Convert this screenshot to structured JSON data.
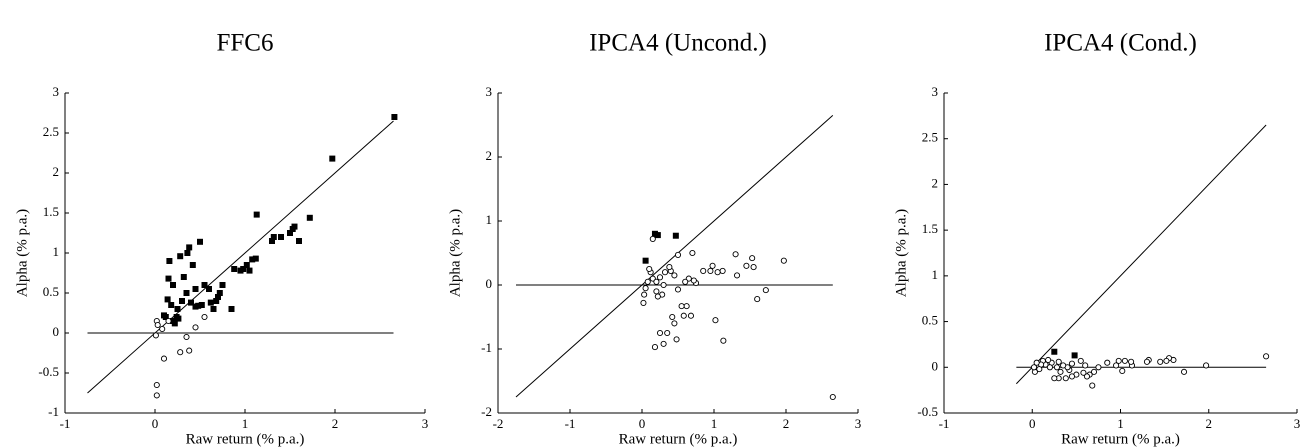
{
  "chart_data": [
    {
      "type": "scatter",
      "title": "FFC6",
      "xlabel": "Raw return (% p.a.)",
      "ylabel": "Alpha (% p.a.)",
      "xlim": [
        -1,
        3
      ],
      "ylim": [
        -1,
        3
      ],
      "xticks": [
        -1,
        0,
        1,
        2,
        3
      ],
      "yticks": [
        -1,
        -0.5,
        0,
        0.5,
        1,
        1.5,
        2,
        2.5,
        3
      ],
      "series": [
        {
          "marker": "square",
          "color": "#000000",
          "x": [
            2.66,
            1.97,
            1.72,
            1.6,
            1.55,
            1.53,
            1.5,
            1.4,
            1.32,
            1.3,
            1.13,
            1.12,
            1.08,
            1.05,
            1.02,
            0.98,
            0.95,
            0.88,
            0.85,
            0.75,
            0.72,
            0.7,
            0.68,
            0.65,
            0.62,
            0.6,
            0.55,
            0.5,
            0.48,
            0.45,
            0.42,
            0.4,
            0.38,
            0.36,
            0.35,
            0.32,
            0.3,
            0.28,
            0.25,
            0.24,
            0.2,
            0.18,
            0.16,
            0.15,
            0.14,
            0.12,
            0.1,
            0.2,
            0.22,
            0.26,
            0.45,
            0.52
          ],
          "y": [
            2.7,
            2.18,
            1.44,
            1.15,
            1.33,
            1.3,
            1.25,
            1.2,
            1.2,
            1.15,
            1.48,
            0.93,
            0.92,
            0.78,
            0.85,
            0.8,
            0.78,
            0.8,
            0.3,
            0.6,
            0.5,
            0.45,
            0.4,
            0.3,
            0.38,
            0.55,
            0.6,
            1.14,
            0.34,
            0.55,
            0.85,
            0.38,
            1.07,
            1.0,
            0.5,
            0.7,
            0.4,
            0.96,
            0.3,
            0.2,
            0.6,
            0.35,
            0.9,
            0.68,
            0.42,
            0.2,
            0.22,
            0.15,
            0.12,
            0.18,
            0.33,
            0.35
          ]
        },
        {
          "marker": "circle",
          "color": "#000000",
          "x": [
            0.02,
            0.03,
            0.01,
            0.02,
            0.02,
            0.1,
            0.28,
            0.38,
            0.35,
            0.45,
            0.55,
            0.15,
            0.08
          ],
          "y": [
            0.15,
            0.1,
            -0.03,
            -0.65,
            -0.78,
            -0.32,
            -0.24,
            -0.22,
            -0.05,
            0.07,
            0.2,
            0.15,
            0.05
          ]
        }
      ],
      "lines": [
        {
          "x": [
            -0.75,
            2.65
          ],
          "y": [
            -0.75,
            2.65
          ]
        },
        {
          "x": [
            -0.75,
            2.65
          ],
          "y": [
            0,
            0
          ]
        }
      ]
    },
    {
      "type": "scatter",
      "title": "IPCA4 (Uncond.)",
      "xlabel": "Raw return (% p.a.)",
      "ylabel": "Alpha (% p.a.)",
      "xlim": [
        -2,
        3
      ],
      "ylim": [
        -2,
        3
      ],
      "xticks": [
        -2,
        -1,
        0,
        1,
        2,
        3
      ],
      "yticks": [
        -2,
        -1,
        0,
        1,
        2,
        3
      ],
      "series": [
        {
          "marker": "square",
          "color": "#000000",
          "x": [
            0.05,
            0.18,
            0.22,
            0.47
          ],
          "y": [
            0.38,
            0.8,
            0.78,
            0.77
          ]
        },
        {
          "marker": "circle",
          "color": "#000000",
          "x": [
            2.65,
            1.97,
            1.72,
            1.6,
            1.55,
            1.53,
            1.45,
            1.32,
            1.3,
            1.13,
            1.12,
            1.05,
            1.02,
            0.98,
            0.95,
            0.85,
            0.75,
            0.72,
            0.7,
            0.68,
            0.65,
            0.62,
            0.6,
            0.58,
            0.55,
            0.5,
            0.48,
            0.45,
            0.42,
            0.4,
            0.38,
            0.35,
            0.32,
            0.3,
            0.28,
            0.25,
            0.22,
            0.2,
            0.18,
            0.15,
            0.12,
            0.1,
            0.08,
            0.05,
            0.03,
            0.02,
            0.15,
            0.2,
            0.5,
            0.3,
            0.25,
            0.45
          ],
          "y": [
            -1.75,
            0.38,
            -0.08,
            -0.22,
            0.28,
            0.42,
            0.3,
            0.15,
            0.48,
            -0.87,
            0.22,
            0.2,
            -0.55,
            0.3,
            0.22,
            0.22,
            0.03,
            0.07,
            0.5,
            -0.48,
            0.1,
            -0.33,
            0.05,
            -0.48,
            -0.33,
            -0.07,
            -0.85,
            -0.6,
            -0.5,
            0.22,
            0.28,
            -0.75,
            0.2,
            -0.92,
            -0.15,
            -0.75,
            -0.18,
            -0.1,
            -0.97,
            0.1,
            0.2,
            0.25,
            0.05,
            -0.05,
            -0.15,
            -0.28,
            0.72,
            0.05,
            0.47,
            0.0,
            0.12,
            0.15
          ]
        }
      ],
      "lines": [
        {
          "x": [
            -1.75,
            2.65
          ],
          "y": [
            -1.75,
            2.65
          ]
        },
        {
          "x": [
            -1.75,
            2.65
          ],
          "y": [
            0,
            0
          ]
        }
      ]
    },
    {
      "type": "scatter",
      "title": "IPCA4 (Cond.)",
      "xlabel": "Raw return (% p.a.)",
      "ylabel": "Alpha (% p.a.)",
      "xlim": [
        -1,
        3
      ],
      "ylim": [
        -0.5,
        3
      ],
      "xticks": [
        -1,
        0,
        1,
        2,
        3
      ],
      "yticks": [
        -0.5,
        0,
        0.5,
        1,
        1.5,
        2,
        2.5,
        3
      ],
      "series": [
        {
          "marker": "square",
          "color": "#000000",
          "x": [
            0.25,
            0.48
          ],
          "y": [
            0.17,
            0.13
          ]
        },
        {
          "marker": "circle",
          "color": "#000000",
          "x": [
            2.65,
            1.97,
            1.72,
            1.6,
            1.55,
            1.52,
            1.45,
            1.32,
            1.3,
            1.13,
            1.12,
            1.05,
            1.02,
            0.98,
            0.95,
            0.85,
            0.75,
            0.7,
            0.68,
            0.65,
            0.62,
            0.6,
            0.58,
            0.55,
            0.5,
            0.45,
            0.42,
            0.4,
            0.38,
            0.35,
            0.32,
            0.3,
            0.28,
            0.25,
            0.22,
            0.2,
            0.18,
            0.15,
            0.12,
            0.1,
            0.08,
            0.05,
            0.03,
            0.02,
            0.3,
            0.45
          ],
          "y": [
            0.12,
            0.02,
            -0.05,
            0.08,
            0.1,
            0.07,
            0.06,
            0.08,
            0.06,
            0.02,
            0.06,
            0.07,
            -0.04,
            0.07,
            0.02,
            0.05,
            0.0,
            -0.05,
            -0.2,
            -0.08,
            -0.1,
            0.02,
            -0.06,
            0.07,
            -0.08,
            -0.1,
            -0.03,
            0.0,
            -0.12,
            0.02,
            -0.05,
            -0.12,
            0.0,
            -0.12,
            0.05,
            0.0,
            0.08,
            0.03,
            0.07,
            0.03,
            -0.02,
            0.05,
            -0.05,
            0.0,
            0.06,
            0.04
          ]
        }
      ],
      "lines": [
        {
          "x": [
            -0.18,
            2.65
          ],
          "y": [
            -0.18,
            2.65
          ]
        },
        {
          "x": [
            -0.18,
            2.65
          ],
          "y": [
            0,
            0
          ]
        }
      ]
    }
  ]
}
